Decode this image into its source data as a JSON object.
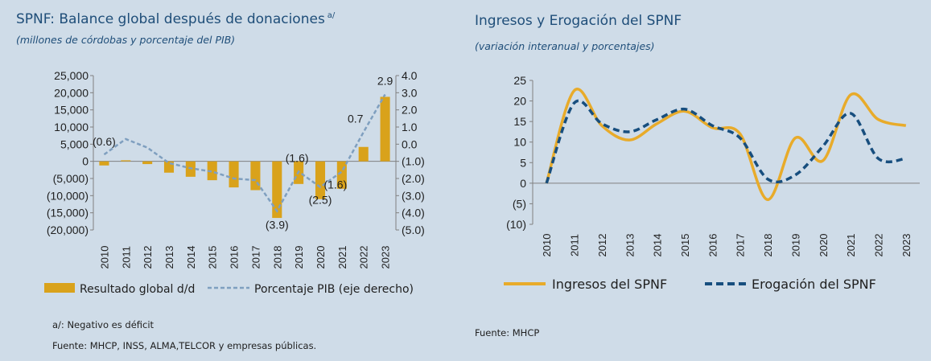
{
  "left": {
    "title": "SPNF: Balance global después de donaciones",
    "title_sup": "a/",
    "subtitle": "(millones de córdobas y porcentaje del PIB)",
    "note1": "a/: Negativo es déficit",
    "note2": "Fuente: MHCP, INSS, ALMA,TELCOR  y empresas públicas."
  },
  "right": {
    "title": "Ingresos y Erogación del SPNF",
    "subtitle": "(variación interanual y porcentajes)",
    "note": "Fuente: MHCP"
  },
  "chart_data": [
    {
      "type": "bar",
      "categories": [
        "2010",
        "2011",
        "2012",
        "2013",
        "2014",
        "2015",
        "2016",
        "2017",
        "2018",
        "2019",
        "2020",
        "2021",
        "2022",
        "2023"
      ],
      "series": [
        {
          "name": "Resultado  global d/d",
          "type": "bar",
          "axis": "left",
          "values": [
            -1200,
            300,
            -800,
            -3300,
            -4500,
            -5500,
            -7600,
            -8400,
            -16500,
            -6600,
            -11000,
            -8000,
            4200,
            18800
          ]
        },
        {
          "name": "Porcentaje PIB (eje derecho)",
          "type": "line",
          "axis": "right",
          "style": "dashed",
          "values": [
            -0.6,
            0.3,
            -0.2,
            -1.1,
            -1.4,
            -1.6,
            -2.0,
            -2.1,
            -3.9,
            -1.6,
            -2.5,
            -1.6,
            0.7,
            2.9
          ]
        }
      ],
      "ylim": [
        -20000,
        25000
      ],
      "yticks": [
        "25,000",
        "20,000",
        "15,000",
        "10,000",
        "5,000",
        "0",
        "(5,000)",
        "(10,000)",
        "(15,000)",
        "(20,000)"
      ],
      "y2lim": [
        -5.0,
        4.0
      ],
      "y2ticks": [
        "4.0",
        "3.0",
        "2.0",
        "1.0",
        "0.0",
        "(1.0)",
        "(2.0)",
        "(3.0)",
        "(4.0)",
        "(5.0)"
      ],
      "data_labels": [
        {
          "index": 0,
          "text": "(0.6)"
        },
        {
          "index": 8,
          "text": "(3.9)"
        },
        {
          "index": 9,
          "text": "(1.6)"
        },
        {
          "index": 10,
          "text": "(2.5)"
        },
        {
          "index": 11,
          "text": "(1.6)"
        },
        {
          "index": 12,
          "text": "0.7"
        },
        {
          "index": 13,
          "text": "2.9"
        }
      ],
      "colors": {
        "bar": "#d9a21b",
        "line": "#7f9fbf"
      },
      "legend": "bottom"
    },
    {
      "type": "line",
      "categories": [
        "2010",
        "2011",
        "2012",
        "2013",
        "2014",
        "2015",
        "2016",
        "2017",
        "2018",
        "2019",
        "2020",
        "2021",
        "2022",
        "2023"
      ],
      "series": [
        {
          "name": "Ingresos del SPNF",
          "style": "solid",
          "values": [
            0,
            22.5,
            14,
            10.5,
            14.5,
            17.5,
            13.5,
            12,
            -4,
            11,
            5.5,
            21.5,
            15.5,
            14
          ]
        },
        {
          "name": "Erogación del SPNF",
          "style": "dashed",
          "values": [
            0,
            19.5,
            14.5,
            12.5,
            15.5,
            18,
            14,
            11,
            1,
            2,
            9,
            17,
            6,
            6
          ]
        }
      ],
      "ylim": [
        -10,
        25
      ],
      "yticks": [
        "25",
        "20",
        "15",
        "10",
        "5",
        "0",
        "(5)",
        "(10)"
      ],
      "colors": {
        "ingresos": "#e8ab2a",
        "erogacion": "#174e7e"
      },
      "legend": "bottom"
    }
  ]
}
